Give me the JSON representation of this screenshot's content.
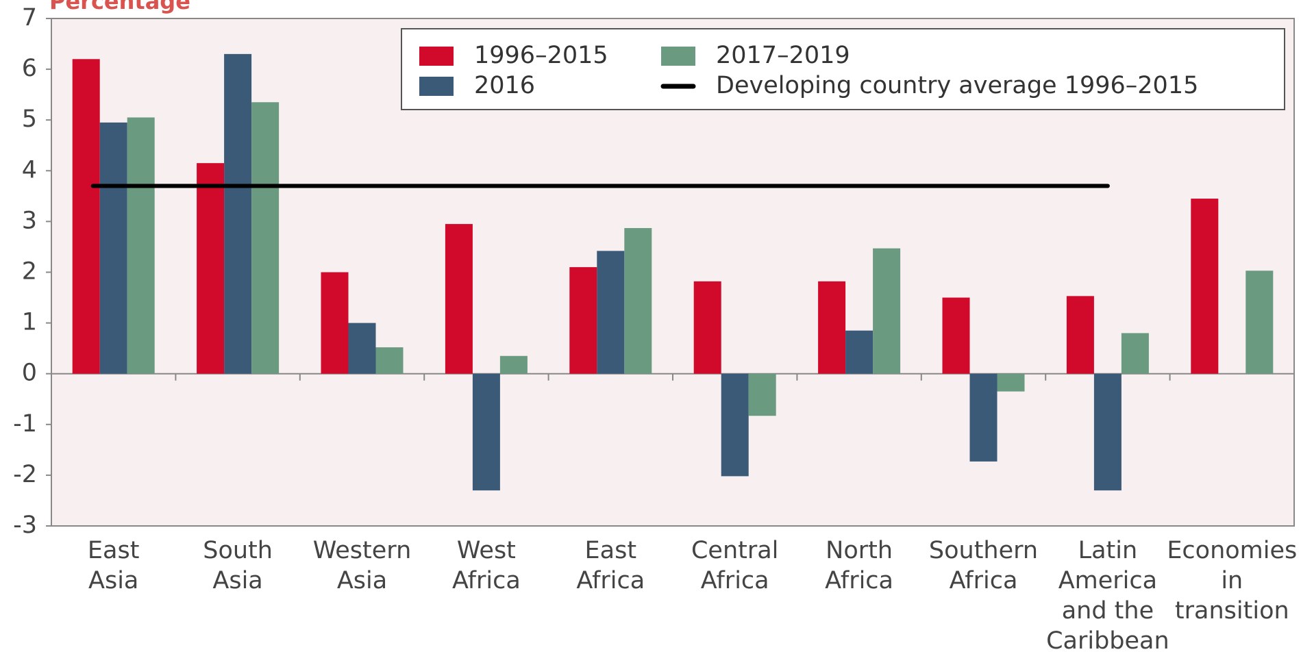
{
  "chart_data": {
    "type": "bar",
    "y_label": "Percentage",
    "categories": [
      [
        "East",
        "Asia"
      ],
      [
        "South",
        "Asia"
      ],
      [
        "Western",
        "Asia"
      ],
      [
        "West",
        "Africa"
      ],
      [
        "East",
        "Africa"
      ],
      [
        "Central",
        "Africa"
      ],
      [
        "North",
        "Africa"
      ],
      [
        "Southern",
        "Africa"
      ],
      [
        "Latin",
        "America",
        "and the",
        "Caribbean"
      ],
      [
        "Economies",
        "in",
        "transition"
      ]
    ],
    "series": [
      {
        "name": "1996–2015",
        "color": "#d10a2b",
        "values": [
          6.2,
          4.15,
          2.0,
          2.95,
          2.1,
          1.82,
          1.82,
          1.5,
          1.53,
          3.45
        ]
      },
      {
        "name": "2016",
        "color": "#3a5a77",
        "values": [
          4.95,
          6.3,
          1.0,
          -2.3,
          2.42,
          -2.02,
          0.85,
          -1.73,
          -2.3,
          null
        ]
      },
      {
        "name": "2017–2019",
        "color": "#6a9a80",
        "values": [
          5.05,
          5.35,
          0.52,
          0.35,
          2.87,
          -0.83,
          2.47,
          -0.35,
          0.8,
          2.03
        ]
      }
    ],
    "average": {
      "name": "Developing country average 1996–2015",
      "color": "#000000",
      "value": 3.7
    },
    "ylim": [
      -3,
      7
    ],
    "yticks": [
      -3,
      -2,
      -1,
      0,
      1,
      2,
      3,
      4,
      5,
      6,
      7
    ]
  }
}
